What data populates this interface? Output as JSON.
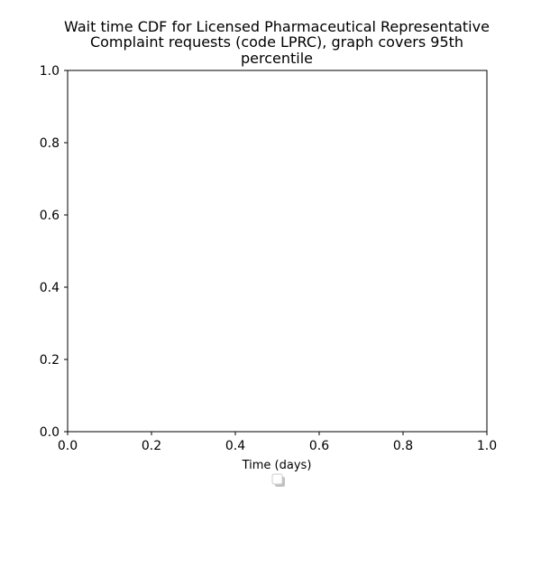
{
  "chart_data": {
    "type": "line",
    "title_lines": [
      "Wait time CDF for Licensed Pharmaceutical Representative",
      "Complaint  requests (code LPRC), graph covers 95th",
      "percentile"
    ],
    "xlabel": "Time (days)",
    "ylabel": "",
    "xlim": [
      0.0,
      1.0
    ],
    "ylim": [
      0.0,
      1.0
    ],
    "x_ticks": [
      "0.0",
      "0.2",
      "0.4",
      "0.6",
      "0.8",
      "1.0"
    ],
    "y_ticks": [
      "0.0",
      "0.2",
      "0.4",
      "0.6",
      "0.8",
      "1.0"
    ],
    "series": [],
    "grid": false,
    "legend": {
      "placement": "below-axes",
      "entries": []
    }
  }
}
